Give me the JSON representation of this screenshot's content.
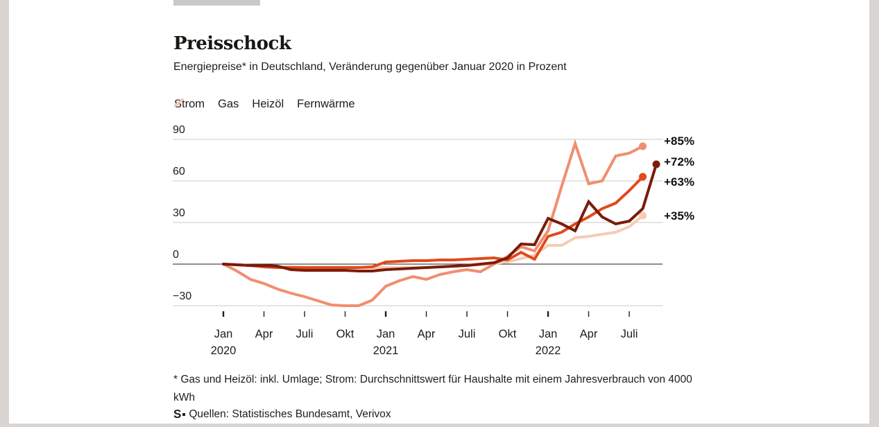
{
  "header": {
    "title": "Preisschock",
    "subtitle": "Energiepreise* in Deutschland, Veränderung gegenüber Januar 2020 in Prozent"
  },
  "chart_data": {
    "type": "line",
    "title": "Preisschock",
    "subtitle": "Energiepreise in Deutschland, Veränderung gegenüber Januar 2020 in Prozent",
    "x_unit": "month",
    "x_start": "Jan 2020",
    "x_end_strom": "Sep 2022",
    "x_end_others": "Aug 2022",
    "ylim": [
      -35,
      95
    ],
    "grid": true,
    "legend_position": "top",
    "y_ticks": [
      {
        "value": 90,
        "label": "90"
      },
      {
        "value": 60,
        "label": "60"
      },
      {
        "value": 30,
        "label": "30"
      },
      {
        "value": 0,
        "label": "0"
      },
      {
        "value": -30,
        "label": "−30"
      }
    ],
    "x_ticks": [
      {
        "month_index": 0,
        "label": "Jan",
        "year": "2020"
      },
      {
        "month_index": 3,
        "label": "Apr"
      },
      {
        "month_index": 6,
        "label": "Juli"
      },
      {
        "month_index": 9,
        "label": "Okt"
      },
      {
        "month_index": 12,
        "label": "Jan",
        "year": "2021"
      },
      {
        "month_index": 15,
        "label": "Apr"
      },
      {
        "month_index": 18,
        "label": "Juli"
      },
      {
        "month_index": 21,
        "label": "Okt"
      },
      {
        "month_index": 24,
        "label": "Jan",
        "year": "2022"
      },
      {
        "month_index": 27,
        "label": "Apr"
      },
      {
        "month_index": 30,
        "label": "Juli"
      }
    ],
    "series": [
      {
        "name": "Strom",
        "color": "#7c1b0a",
        "end_label": "+72%",
        "values": [
          0,
          -0.5,
          -1,
          -1,
          -1.5,
          -4,
          -4.5,
          -4.5,
          -4.5,
          -4.5,
          -5,
          -5,
          -4,
          -3.5,
          -3,
          -2.5,
          -2,
          -1.5,
          -1,
          0,
          1,
          4.5,
          14.5,
          14,
          33,
          29,
          24,
          45,
          34,
          29,
          31,
          40,
          72
        ]
      },
      {
        "name": "Gas",
        "color": "#e2491b",
        "end_label": "+63%",
        "values": [
          0,
          -0.5,
          -1,
          -2,
          -2.5,
          -2.5,
          -2.5,
          -2.5,
          -2.5,
          -2.5,
          -2.5,
          -2,
          1.5,
          2,
          2.5,
          2.5,
          3,
          3,
          3.5,
          4,
          4.5,
          3,
          8.5,
          3.5,
          20,
          23,
          29,
          34,
          40,
          44,
          53,
          63
        ]
      },
      {
        "name": "Heizöl",
        "color": "#f08e6f",
        "end_label": "+85%",
        "values": [
          0,
          -5,
          -11,
          -14,
          -18,
          -21,
          -23.5,
          -26.5,
          -29.5,
          -30,
          -30,
          -26,
          -16,
          -12,
          -9,
          -11,
          -7.5,
          -5.5,
          -4,
          -5.5,
          0,
          5.5,
          12.5,
          9.5,
          24,
          56,
          87,
          58,
          60,
          78,
          80,
          85
        ]
      },
      {
        "name": "Fernwärme",
        "color": "#f7cbb6",
        "end_label": "+35%",
        "values": [
          0,
          -0.5,
          -1,
          -1.5,
          -2,
          -2,
          -2.5,
          -2.5,
          -2.5,
          -2.5,
          -2.5,
          -2.5,
          -2.5,
          -2.5,
          -2.5,
          -2.5,
          -2,
          -1.5,
          -1,
          -0.5,
          0.5,
          1.5,
          4,
          6.5,
          13.5,
          13.5,
          19,
          20,
          21.5,
          23,
          27,
          35
        ]
      }
    ]
  },
  "footer": {
    "footnote": "* Gas und Heizöl: inkl. Umlage; Strom: Durchschnittswert für Haushalte mit einem Jahresverbrauch von 4000 kWh",
    "source_logo": "S",
    "source": "Quellen: Statistisches Bundesamt, Verivox"
  }
}
